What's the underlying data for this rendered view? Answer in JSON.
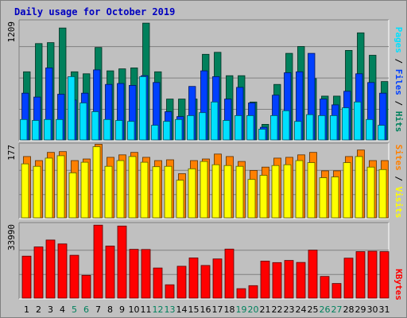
{
  "title": "Daily usage for October 2019",
  "colors": {
    "frame_bg": "#c0c0c0",
    "title": "#0000c0",
    "hits": "#00805c",
    "files": "#0040ff",
    "pages": "#00e0ff",
    "visits": "#ffff00",
    "sites": "#ff8000",
    "kbytes": "#ff0000",
    "weekend_label": "#00805c",
    "weekday_label": "#000000"
  },
  "legend": {
    "pages": "Pages",
    "files": "Files",
    "hits": "Hits",
    "sep": " / ",
    "sites": "Sites",
    "visits": "Visits",
    "kbytes": "KBytes"
  },
  "chart_data": {
    "type": "bar",
    "title": "Daily usage for October 2019",
    "categories": [
      "1",
      "2",
      "3",
      "4",
      "5",
      "6",
      "7",
      "8",
      "9",
      "10",
      "11",
      "12",
      "13",
      "14",
      "15",
      "16",
      "17",
      "18",
      "19",
      "20",
      "21",
      "22",
      "23",
      "24",
      "25",
      "26",
      "27",
      "28",
      "29",
      "30",
      "31"
    ],
    "weekend_days": [
      "5",
      "6",
      "12",
      "13",
      "19",
      "20",
      "26",
      "27"
    ],
    "panels": [
      {
        "name": "top",
        "max_label": "1209",
        "ylim": [
          0,
          1209
        ],
        "series": [
          {
            "name": "Hits",
            "color": "#00805c",
            "values": [
              700,
              990,
              1000,
              1150,
              700,
              680,
              950,
              710,
              730,
              740,
              1200,
              700,
              420,
              420,
              420,
              880,
              900,
              660,
              660,
              390,
              160,
              570,
              890,
              960,
              630,
              450,
              450,
              920,
              1100,
              870,
              600
            ]
          },
          {
            "name": "Files",
            "color": "#0040ff",
            "values": [
              480,
              440,
              740,
              470,
              410,
              480,
              720,
              570,
              580,
              560,
              660,
              590,
              290,
              240,
              550,
              710,
              650,
              420,
              540,
              380,
              130,
              460,
              690,
              700,
              890,
              420,
              360,
              500,
              680,
              590,
              480
            ]
          },
          {
            "name": "Pages",
            "color": "#00e0ff",
            "values": [
              210,
              200,
              210,
              210,
              650,
              380,
              290,
              210,
              200,
              190,
              650,
              150,
              190,
              210,
              250,
              280,
              390,
              200,
              250,
              250,
              110,
              250,
              300,
              190,
              260,
              250,
              250,
              330,
              390,
              210,
              150
            ]
          }
        ]
      },
      {
        "name": "middle",
        "max_label": "177",
        "ylim": [
          0,
          177
        ],
        "series": [
          {
            "name": "Sites",
            "color": "#ff8000",
            "values": [
              150,
              140,
              160,
              162,
              140,
              144,
              180,
              148,
              154,
              160,
              148,
              140,
              142,
              108,
              140,
              144,
              156,
              150,
              138,
              116,
              124,
              146,
              148,
              154,
              160,
              115,
              115,
              150,
              166,
              140,
              140
            ]
          },
          {
            "name": "Visits",
            "color": "#ffff00",
            "values": [
              132,
              126,
              146,
              152,
              110,
              136,
              174,
              126,
              140,
              150,
              136,
              125,
              126,
              92,
              120,
              138,
              130,
              128,
              126,
              94,
              104,
              128,
              130,
              140,
              135,
              98,
              100,
              135,
              150,
              124,
              118
            ]
          }
        ]
      },
      {
        "name": "bottom",
        "max_label": "33990",
        "ylim": [
          0,
          33990
        ],
        "series": [
          {
            "name": "KBytes",
            "color": "#ff0000",
            "values": [
              19500,
              23800,
              27000,
              25200,
              19900,
              10600,
              33900,
              24200,
              33500,
              22700,
              22600,
              14000,
              6200,
              14800,
              18700,
              15200,
              18200,
              22800,
              4400,
              5800,
              17200,
              16500,
              17500,
              16600,
              22300,
              10100,
              6800,
              18600,
              21600,
              21800,
              21600
            ]
          }
        ]
      }
    ]
  }
}
